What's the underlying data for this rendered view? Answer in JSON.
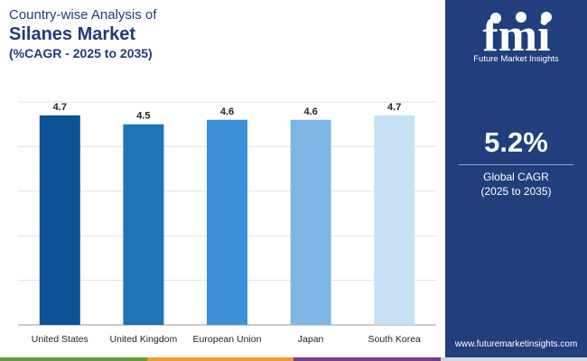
{
  "title": {
    "line1": "Country-wise Analysis of",
    "line2": "Silanes Market",
    "line3": "(%CAGR - 2025 to 2035)"
  },
  "chart_data": {
    "type": "bar",
    "categories": [
      "United States",
      "United Kingdom",
      "European Union",
      "Japan",
      "South Korea"
    ],
    "values": [
      4.7,
      4.5,
      4.6,
      4.6,
      4.7
    ],
    "data_labels": [
      "4.7",
      "4.5",
      "4.6",
      "4.6",
      "4.7"
    ],
    "bar_colors": [
      "#0b5394",
      "#1f73b7",
      "#3a8fd6",
      "#7fb5e2",
      "#c5e1f3"
    ],
    "ylim": [
      0,
      5
    ],
    "grid": true,
    "legend": "none",
    "xlabel": "",
    "ylabel": ""
  },
  "side_panel": {
    "logo_letters": "fmi",
    "logo_text": "Future Market Insights",
    "cagr_value": "5.2%",
    "cagr_label_line1": "Global CAGR",
    "cagr_label_line2": "(2025 to 2035)",
    "url": "www.futuremarketinsights.com",
    "background": "#213f7d"
  },
  "bottom_bar_colors": [
    "#6a9a3b",
    "#f39c2b",
    "#7b3a8d",
    "#d7d7d7"
  ]
}
